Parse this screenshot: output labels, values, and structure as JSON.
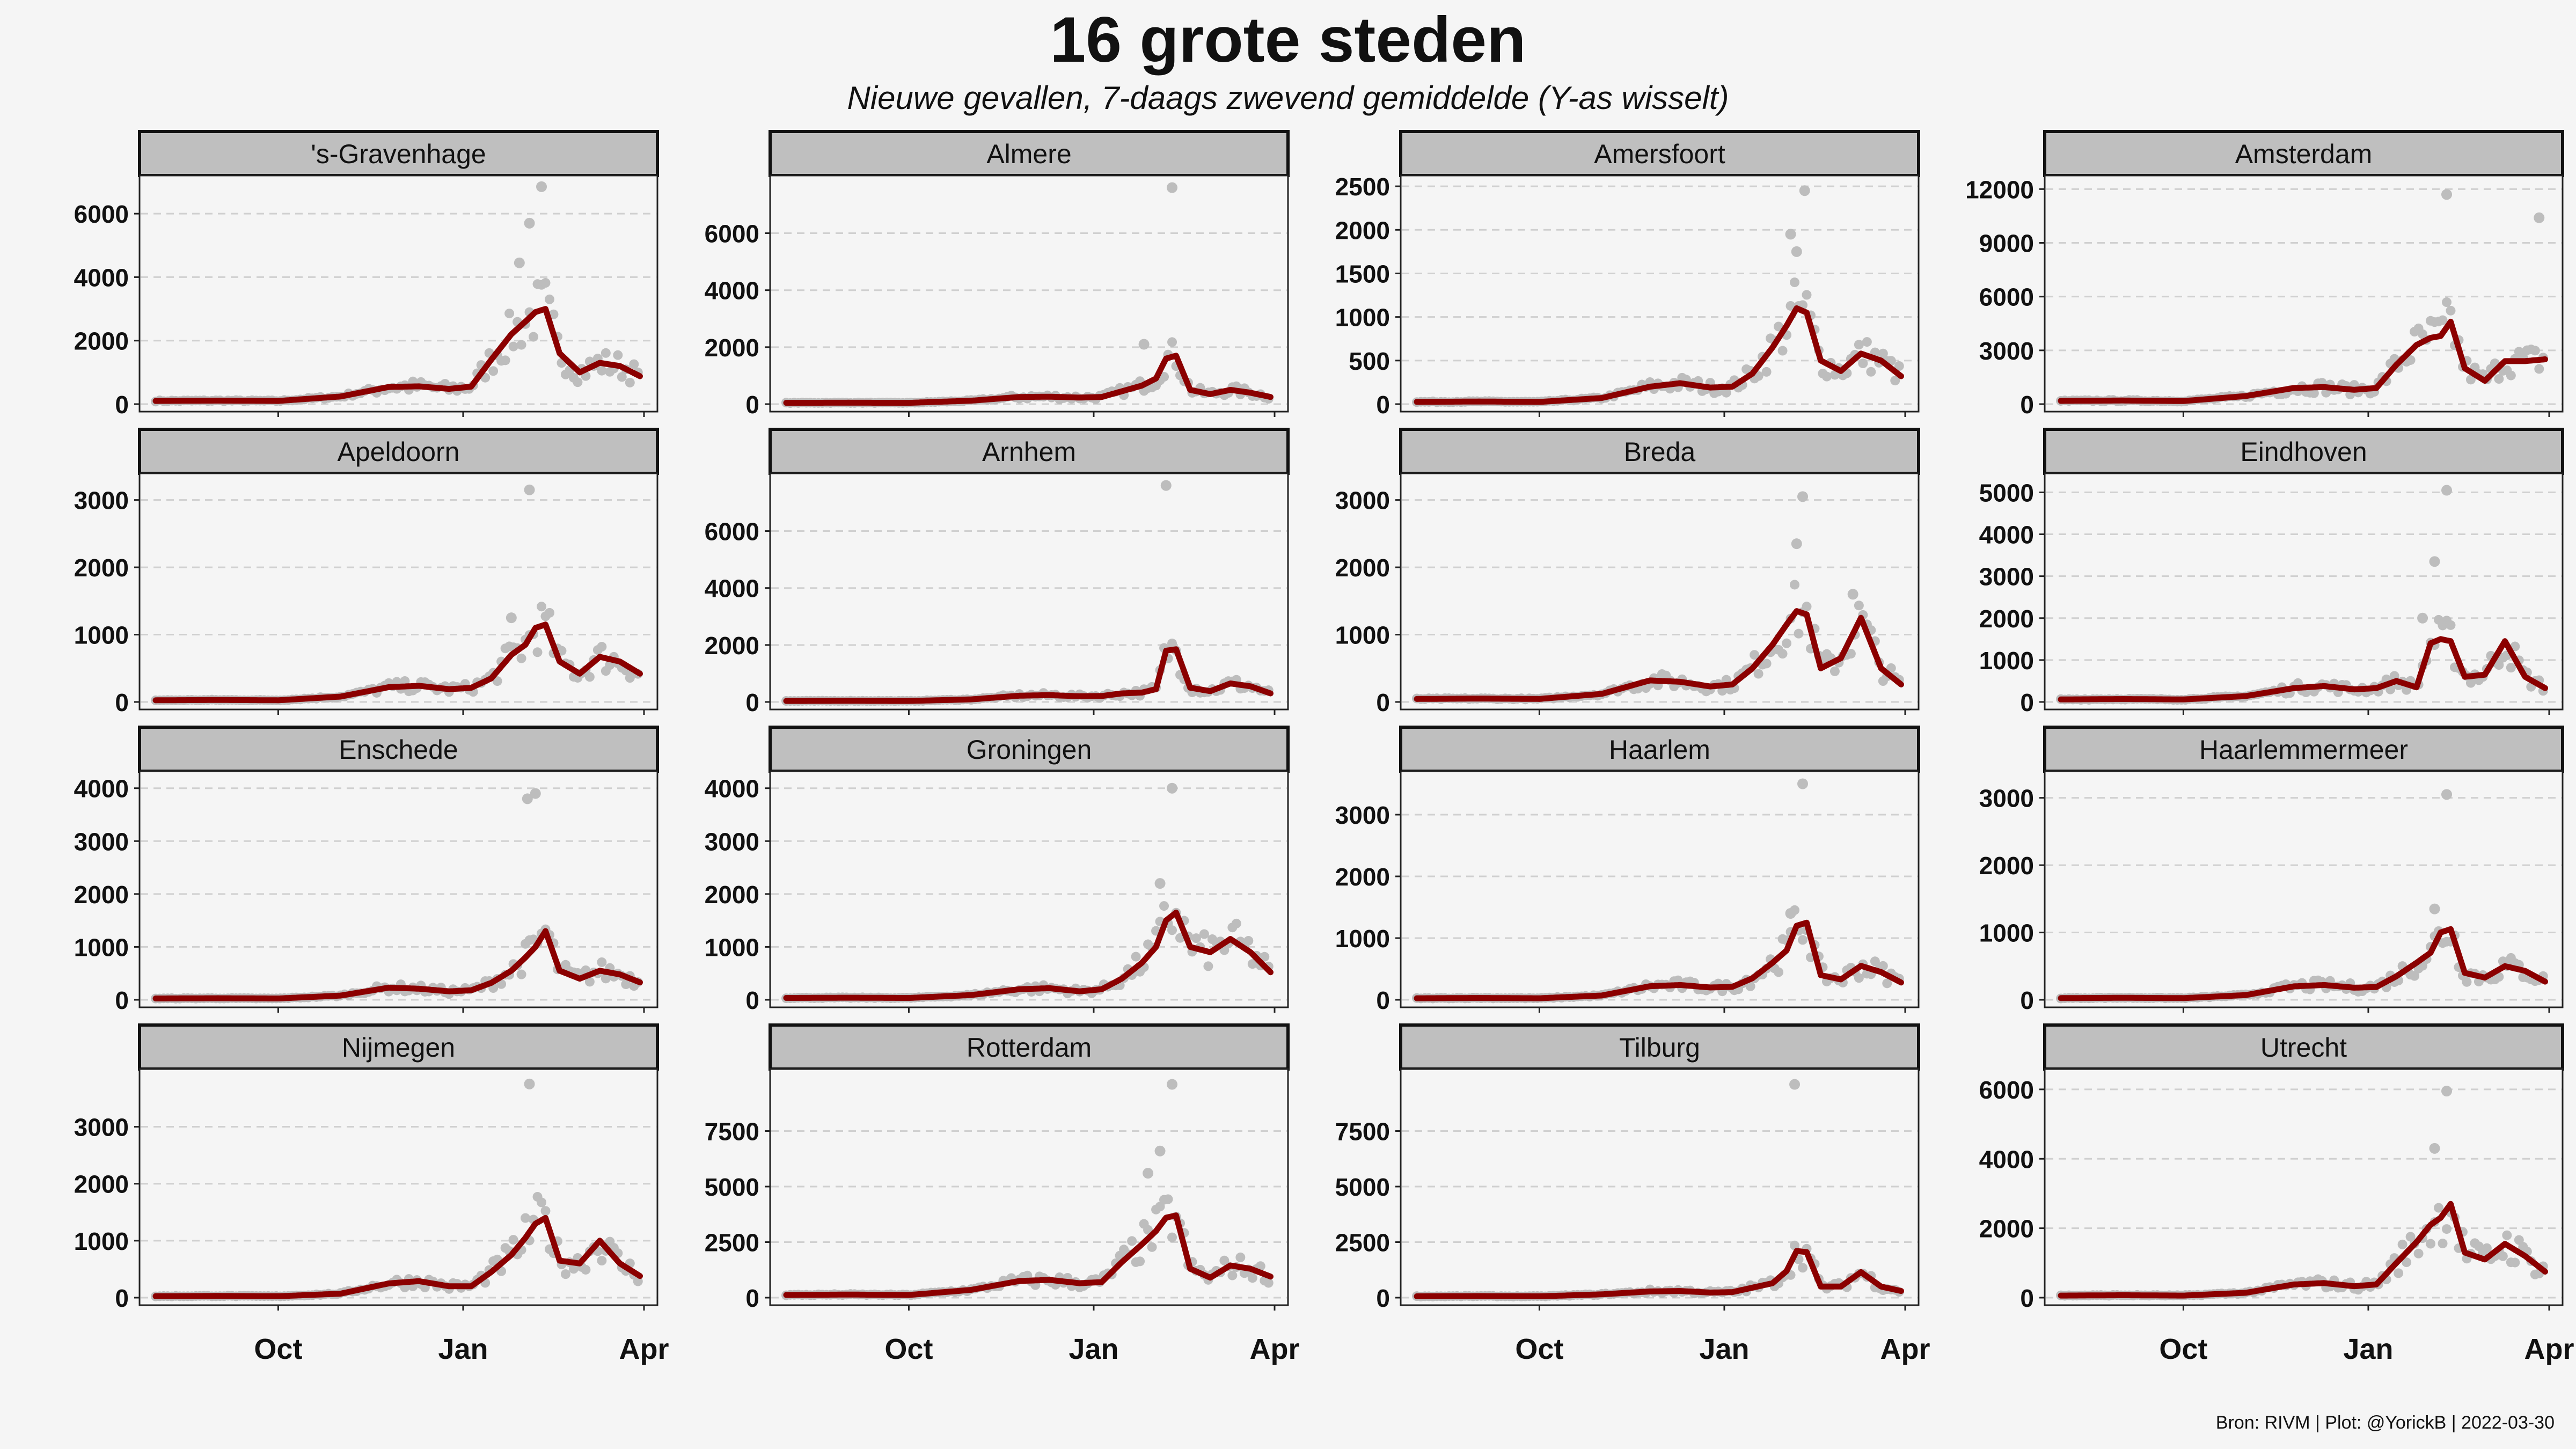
{
  "title": "16 grote steden",
  "subtitle": "Nieuwe gevallen, 7-daags zwevend gemiddelde (Y-as wisselt)",
  "caption": "Bron: RIVM | Plot: @YorickB |  2022-03-30",
  "colors": {
    "line": "#8b0000",
    "points": "#bdbdbd",
    "strip": "#bfbfbf",
    "background": "#f5f5f5",
    "grid": "#d0d0d0"
  },
  "chart_data": {
    "type": "line",
    "x_range": [
      "2021-08-01",
      "2022-03-30"
    ],
    "x_ticks": [
      {
        "label": "Oct",
        "date": "2021-10-01"
      },
      {
        "label": "Jan",
        "date": "2022-01-01"
      },
      {
        "label": "Apr",
        "date": "2022-04-01"
      }
    ],
    "grid": "horizontal dashed",
    "x_knots": [
      "2021-08-01",
      "2021-09-01",
      "2021-10-01",
      "2021-11-01",
      "2021-11-25",
      "2021-12-10",
      "2021-12-25",
      "2022-01-05",
      "2022-01-15",
      "2022-01-25",
      "2022-02-01",
      "2022-02-06",
      "2022-02-11",
      "2022-02-18",
      "2022-02-28",
      "2022-03-10",
      "2022-03-20",
      "2022-03-30"
    ],
    "panels": [
      {
        "name": "'s-Gravenhage",
        "ylim": [
          0,
          7000
        ],
        "ticks": [
          0,
          2000,
          4000,
          6000
        ],
        "values": [
          100,
          110,
          100,
          240,
          540,
          560,
          480,
          550,
          1400,
          2200,
          2600,
          2900,
          3000,
          1600,
          1000,
          1300,
          1200,
          880
        ],
        "outliers": [
          [
            "2022-01-29",
            4450
          ],
          [
            "2022-02-03",
            5700
          ],
          [
            "2022-02-09",
            6850
          ]
        ]
      },
      {
        "name": "Almere",
        "ylim": [
          0,
          7800
        ],
        "ticks": [
          0,
          2000,
          4000,
          6000
        ],
        "values": [
          45,
          50,
          45,
          120,
          250,
          260,
          230,
          250,
          450,
          650,
          900,
          1600,
          1700,
          500,
          350,
          500,
          400,
          250
        ],
        "outliers": [
          [
            "2022-01-26",
            2100
          ],
          [
            "2022-02-09",
            7600
          ]
        ]
      },
      {
        "name": "Amersfoort",
        "ylim": [
          0,
          2550
        ],
        "ticks": [
          0,
          500,
          1000,
          1500,
          2000,
          2500
        ],
        "values": [
          25,
          30,
          25,
          70,
          200,
          240,
          190,
          200,
          350,
          650,
          900,
          1100,
          1050,
          500,
          380,
          580,
          500,
          320
        ],
        "outliers": [
          [
            "2022-02-03",
            1950
          ],
          [
            "2022-02-06",
            1750
          ],
          [
            "2022-02-10",
            2450
          ]
        ]
      },
      {
        "name": "Amsterdam",
        "ylim": [
          0,
          12400
        ],
        "ticks": [
          0,
          3000,
          6000,
          9000,
          12000
        ],
        "values": [
          180,
          200,
          170,
          450,
          900,
          950,
          800,
          900,
          2200,
          3300,
          3700,
          3800,
          4600,
          2000,
          1300,
          2400,
          2400,
          2500
        ],
        "outliers": [
          [
            "2022-02-09",
            11700
          ],
          [
            "2022-03-27",
            10400
          ]
        ]
      },
      {
        "name": "Apeldoorn",
        "ylim": [
          0,
          3300
        ],
        "ticks": [
          0,
          1000,
          2000,
          3000
        ],
        "values": [
          25,
          30,
          25,
          80,
          220,
          240,
          190,
          210,
          350,
          700,
          850,
          1100,
          1150,
          600,
          420,
          670,
          600,
          420
        ],
        "outliers": [
          [
            "2022-02-03",
            3150
          ],
          [
            "2022-01-25",
            1250
          ]
        ]
      },
      {
        "name": "Arnhem",
        "ylim": [
          0,
          7800
        ],
        "ticks": [
          0,
          2000,
          4000,
          6000
        ],
        "values": [
          35,
          40,
          35,
          90,
          220,
          240,
          200,
          210,
          300,
          330,
          450,
          1800,
          1850,
          500,
          380,
          650,
          550,
          300
        ],
        "outliers": [
          [
            "2022-02-06",
            7600
          ]
        ]
      },
      {
        "name": "Breda",
        "ylim": [
          0,
          3300
        ],
        "ticks": [
          0,
          1000,
          2000,
          3000
        ],
        "values": [
          45,
          50,
          45,
          120,
          320,
          300,
          230,
          260,
          500,
          850,
          1150,
          1350,
          1300,
          500,
          650,
          1250,
          500,
          260
        ],
        "outliers": [
          [
            "2022-02-06",
            2350
          ],
          [
            "2022-02-09",
            3050
          ],
          [
            "2022-03-06",
            1600
          ]
        ]
      },
      {
        "name": "Eindhoven",
        "ylim": [
          0,
          5300
        ],
        "ticks": [
          0,
          1000,
          2000,
          3000,
          4000,
          5000
        ],
        "values": [
          60,
          70,
          60,
          140,
          330,
          380,
          300,
          330,
          500,
          350,
          1400,
          1500,
          1450,
          600,
          650,
          1450,
          600,
          330
        ],
        "outliers": [
          [
            "2022-01-28",
            2000
          ],
          [
            "2022-02-03",
            3350
          ],
          [
            "2022-02-09",
            5050
          ]
        ]
      },
      {
        "name": "Enschede",
        "ylim": [
          0,
          4200
        ],
        "ticks": [
          0,
          1000,
          2000,
          3000,
          4000
        ],
        "values": [
          25,
          30,
          25,
          80,
          230,
          210,
          160,
          180,
          320,
          550,
          800,
          1000,
          1300,
          550,
          400,
          550,
          480,
          330
        ],
        "outliers": [
          [
            "2022-02-02",
            3800
          ],
          [
            "2022-02-06",
            3900
          ]
        ]
      },
      {
        "name": "Groningen",
        "ylim": [
          0,
          4200
        ],
        "ticks": [
          0,
          1000,
          2000,
          3000,
          4000
        ],
        "values": [
          35,
          40,
          35,
          90,
          200,
          220,
          160,
          200,
          400,
          700,
          1000,
          1500,
          1650,
          1000,
          900,
          1150,
          900,
          520
        ],
        "outliers": [
          [
            "2022-02-03",
            2200
          ],
          [
            "2022-02-09",
            4000
          ]
        ]
      },
      {
        "name": "Haarlem",
        "ylim": [
          0,
          3600
        ],
        "ticks": [
          0,
          1000,
          2000,
          3000
        ],
        "values": [
          25,
          30,
          25,
          70,
          220,
          240,
          200,
          210,
          350,
          600,
          800,
          1200,
          1250,
          400,
          330,
          550,
          450,
          280
        ],
        "outliers": [
          [
            "2022-02-03",
            1400
          ],
          [
            "2022-02-09",
            3500
          ]
        ]
      },
      {
        "name": "Haarlemmermeer",
        "ylim": [
          0,
          3300
        ],
        "ticks": [
          0,
          1000,
          2000,
          3000
        ],
        "values": [
          25,
          30,
          25,
          70,
          200,
          220,
          180,
          190,
          350,
          550,
          700,
          1000,
          1050,
          400,
          330,
          500,
          430,
          270
        ],
        "outliers": [
          [
            "2022-02-03",
            1350
          ],
          [
            "2022-02-09",
            3050
          ]
        ]
      },
      {
        "name": "Nijmegen",
        "ylim": [
          0,
          3900
        ],
        "ticks": [
          0,
          1000,
          2000,
          3000
        ],
        "values": [
          25,
          30,
          25,
          70,
          250,
          290,
          200,
          200,
          450,
          750,
          1050,
          1300,
          1400,
          650,
          600,
          1000,
          600,
          380
        ],
        "outliers": [
          [
            "2022-02-03",
            3750
          ]
        ]
      },
      {
        "name": "Rotterdam",
        "ylim": [
          0,
          10000
        ],
        "ticks": [
          0,
          2500,
          5000,
          7500
        ],
        "values": [
          120,
          140,
          120,
          350,
          750,
          800,
          650,
          700,
          1600,
          2400,
          3000,
          3600,
          3700,
          1300,
          900,
          1450,
          1300,
          950
        ],
        "outliers": [
          [
            "2022-01-28",
            5600
          ],
          [
            "2022-02-03",
            6600
          ],
          [
            "2022-02-09",
            9600
          ]
        ]
      },
      {
        "name": "Tilburg",
        "ylim": [
          0,
          10000
        ],
        "ticks": [
          0,
          2500,
          5000,
          7500
        ],
        "values": [
          60,
          70,
          60,
          150,
          280,
          300,
          230,
          250,
          450,
          650,
          1200,
          2100,
          2050,
          500,
          500,
          1150,
          500,
          300
        ],
        "outliers": [
          [
            "2022-02-05",
            9600
          ]
        ]
      },
      {
        "name": "Utrecht",
        "ylim": [
          0,
          6400
        ],
        "ticks": [
          0,
          2000,
          4000,
          6000
        ],
        "values": [
          60,
          70,
          60,
          140,
          380,
          420,
          330,
          380,
          1000,
          1600,
          2100,
          2300,
          2700,
          1300,
          1100,
          1550,
          1200,
          750
        ],
        "outliers": [
          [
            "2022-02-03",
            4300
          ],
          [
            "2022-02-09",
            5950
          ]
        ]
      }
    ]
  }
}
